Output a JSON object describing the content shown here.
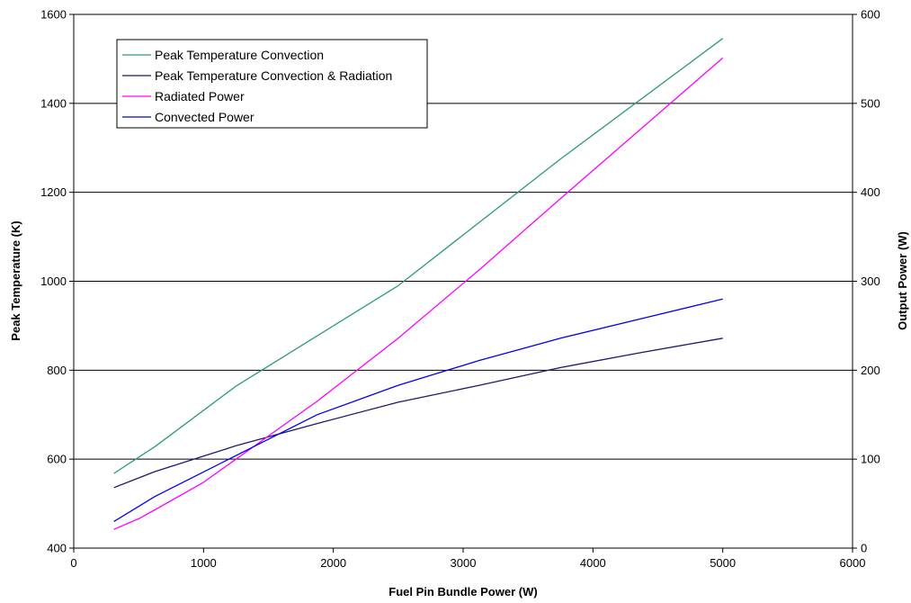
{
  "chart_data": {
    "type": "line",
    "title": "",
    "xlabel": "Fuel Pin Bundle Power (W)",
    "ylabel": "Peak Temperature (K)",
    "y2label": "Output Power (W)",
    "xlim": [
      0,
      6000
    ],
    "ylim": [
      400,
      1600
    ],
    "y2lim": [
      0,
      600
    ],
    "x_ticks": [
      "0",
      "1000",
      "2000",
      "3000",
      "4000",
      "5000",
      "6000"
    ],
    "y_ticks": [
      "400",
      "600",
      "800",
      "1000",
      "1200",
      "1400",
      "1600"
    ],
    "y2_ticks": [
      "0",
      "100",
      "200",
      "300",
      "400",
      "500",
      "600"
    ],
    "grid": "horizontal",
    "legend_position": "top-left",
    "series": [
      {
        "name": "Peak Temperature Convection",
        "axis": "left",
        "color": "#2e9c6a",
        "points": [
          [
            310,
            568
          ],
          [
            625,
            628
          ],
          [
            1250,
            764
          ],
          [
            2500,
            990
          ],
          [
            3750,
            1275
          ],
          [
            5000,
            1546
          ]
        ]
      },
      {
        "name": "Peak Temperature Convection & Radiation",
        "axis": "left",
        "color": "#1a1a6e",
        "points": [
          [
            310,
            536
          ],
          [
            625,
            572
          ],
          [
            1250,
            630
          ],
          [
            1875,
            680
          ],
          [
            2500,
            728
          ],
          [
            3125,
            766
          ],
          [
            3750,
            806
          ],
          [
            4375,
            840
          ],
          [
            5000,
            872
          ]
        ]
      },
      {
        "name": "Radiated Power",
        "axis": "right",
        "color": "#ff00ff",
        "points": [
          [
            310,
            21
          ],
          [
            500,
            33
          ],
          [
            625,
            43
          ],
          [
            1000,
            74
          ],
          [
            1250,
            100
          ],
          [
            1875,
            165
          ],
          [
            2500,
            236
          ],
          [
            3125,
            313
          ],
          [
            3750,
            393
          ],
          [
            4375,
            472
          ],
          [
            5000,
            551
          ]
        ]
      },
      {
        "name": "Convected Power",
        "axis": "right",
        "color": "#0000ee",
        "points": [
          [
            310,
            30
          ],
          [
            625,
            58
          ],
          [
            1250,
            104
          ],
          [
            1875,
            150
          ],
          [
            2500,
            183
          ],
          [
            3125,
            211
          ],
          [
            3750,
            236
          ],
          [
            4375,
            258
          ],
          [
            5000,
            280
          ]
        ]
      }
    ]
  }
}
